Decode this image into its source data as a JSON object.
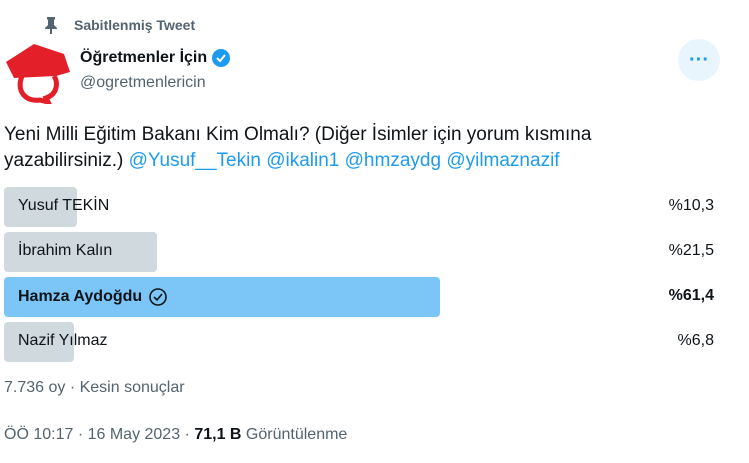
{
  "pinned_label": "Sabitlenmiş Tweet",
  "author": {
    "name": "Öğretmenler İçin",
    "handle": "@ogretmenlericin",
    "verified": true
  },
  "tweet": {
    "text": "Yeni Milli Eğitim Bakanı Kim Olmalı? (Diğer İsimler için yorum kısmına yazabilirsiniz.)",
    "mentions": [
      "@Yusuf__Tekin",
      "@ikalin1",
      "@hmzaydg",
      "@yilmaznazif"
    ]
  },
  "poll": {
    "options": [
      {
        "label": "Yusuf TEKİN",
        "percent_label": "%10,3",
        "percent": 10.3,
        "winner": false
      },
      {
        "label": "İbrahim Kalın",
        "percent_label": "%21,5",
        "percent": 21.5,
        "winner": false
      },
      {
        "label": "Hamza Aydoğdu",
        "percent_label": "%61,4",
        "percent": 61.4,
        "winner": true
      },
      {
        "label": "Nazif Yılmaz",
        "percent_label": "%6,8",
        "percent": 6.8,
        "winner": false
      }
    ],
    "votes": "7.736 oy",
    "status": "Kesin sonuçlar"
  },
  "footer": {
    "time": "ÖÖ 10:17",
    "date": "16 May 2023",
    "views_count": "71,1 B",
    "views_label": "Görüntülenme"
  },
  "colors": {
    "accent": "#1d9bf0",
    "bar": "#cfd9de",
    "winner_bar": "#7cc5f7",
    "brand": "#e3202a"
  }
}
